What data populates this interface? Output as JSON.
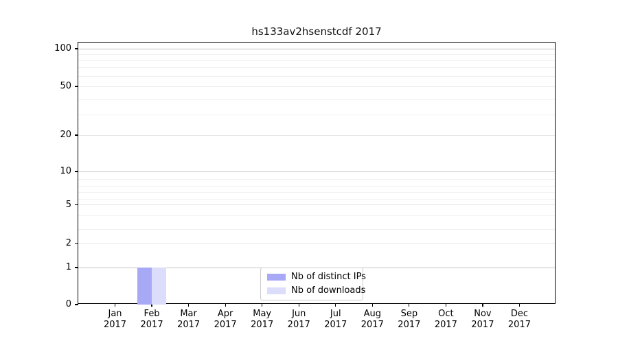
{
  "chart_data": {
    "type": "bar",
    "title": "hs133av2hsenstcdf 2017",
    "categories": [
      "Jan",
      "Feb",
      "Mar",
      "Apr",
      "May",
      "Jun",
      "Jul",
      "Aug",
      "Sep",
      "Oct",
      "Nov",
      "Dec"
    ],
    "category_year": "2017",
    "series": [
      {
        "name": "Nb of distinct IPs",
        "color": "#a7a9f7",
        "values": [
          0,
          1,
          0,
          0,
          0,
          0,
          0,
          0,
          0,
          0,
          0,
          0
        ]
      },
      {
        "name": "Nb of downloads",
        "color": "#dbddfb",
        "values": [
          0,
          1,
          0,
          0,
          0,
          0,
          0,
          0,
          0,
          0,
          0,
          0
        ]
      }
    ],
    "y_axis": {
      "scale": "symlog",
      "ticks": [
        0,
        1,
        2,
        5,
        10,
        20,
        50,
        100
      ],
      "minor_gridlines": [
        3,
        4,
        6,
        7,
        8,
        9,
        30,
        40,
        60,
        70,
        80,
        90
      ],
      "range": [
        0,
        110
      ]
    },
    "x_axis": {
      "label": "",
      "tick_format": "Month over 2017"
    },
    "legend": {
      "position": "lower center",
      "entries": [
        "Nb of distinct IPs",
        "Nb of downloads"
      ]
    },
    "grid": true
  },
  "colors": {
    "background": "#ffffff",
    "spine": "#000000",
    "gridline_decade": "#c3c3c3",
    "gridline_labeled": "#e7e7e7",
    "gridline_minor": "#f1f1f1",
    "legend_border": "#cccccc",
    "text": "#000000"
  }
}
